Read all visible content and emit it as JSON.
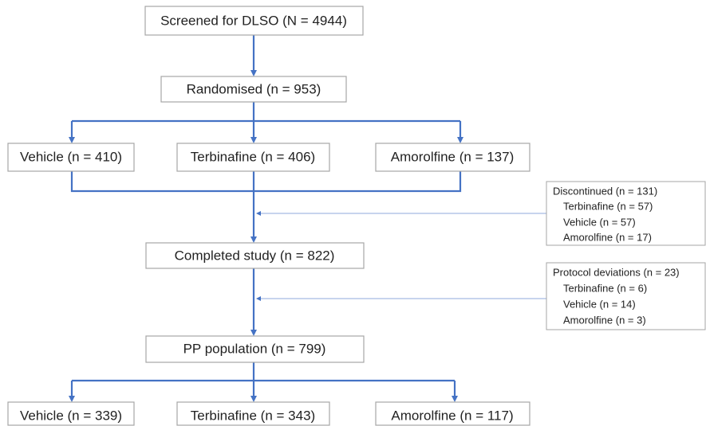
{
  "nodes": [
    {
      "label": "Screened for DLSO (N = 4944)"
    },
    {
      "label": "Randomised (n = 953)"
    },
    {
      "label": "Vehicle (n = 410)"
    },
    {
      "label": "Terbinafine (n = 406)"
    },
    {
      "label": "Amorolfine (n = 137)"
    },
    {
      "label": "Completed study (n = 822)"
    },
    {
      "label": "PP population (n = 799)"
    },
    {
      "label": "Vehicle (n = 339)"
    },
    {
      "label": "Terbinafine (n = 343)"
    },
    {
      "label": "Amorolfine (n = 117)"
    }
  ],
  "side_boxes": [
    {
      "title": "Discontinued (n = 131)",
      "items": [
        "Terbinafine (n = 57)",
        "Vehicle (n = 57)",
        "Amorolfine (n = 17)"
      ]
    },
    {
      "title": "Protocol deviations (n = 23)",
      "items": [
        "Terbinafine (n = 6)",
        "Vehicle (n = 14)",
        "Amorolfine (n = 3)"
      ]
    }
  ]
}
